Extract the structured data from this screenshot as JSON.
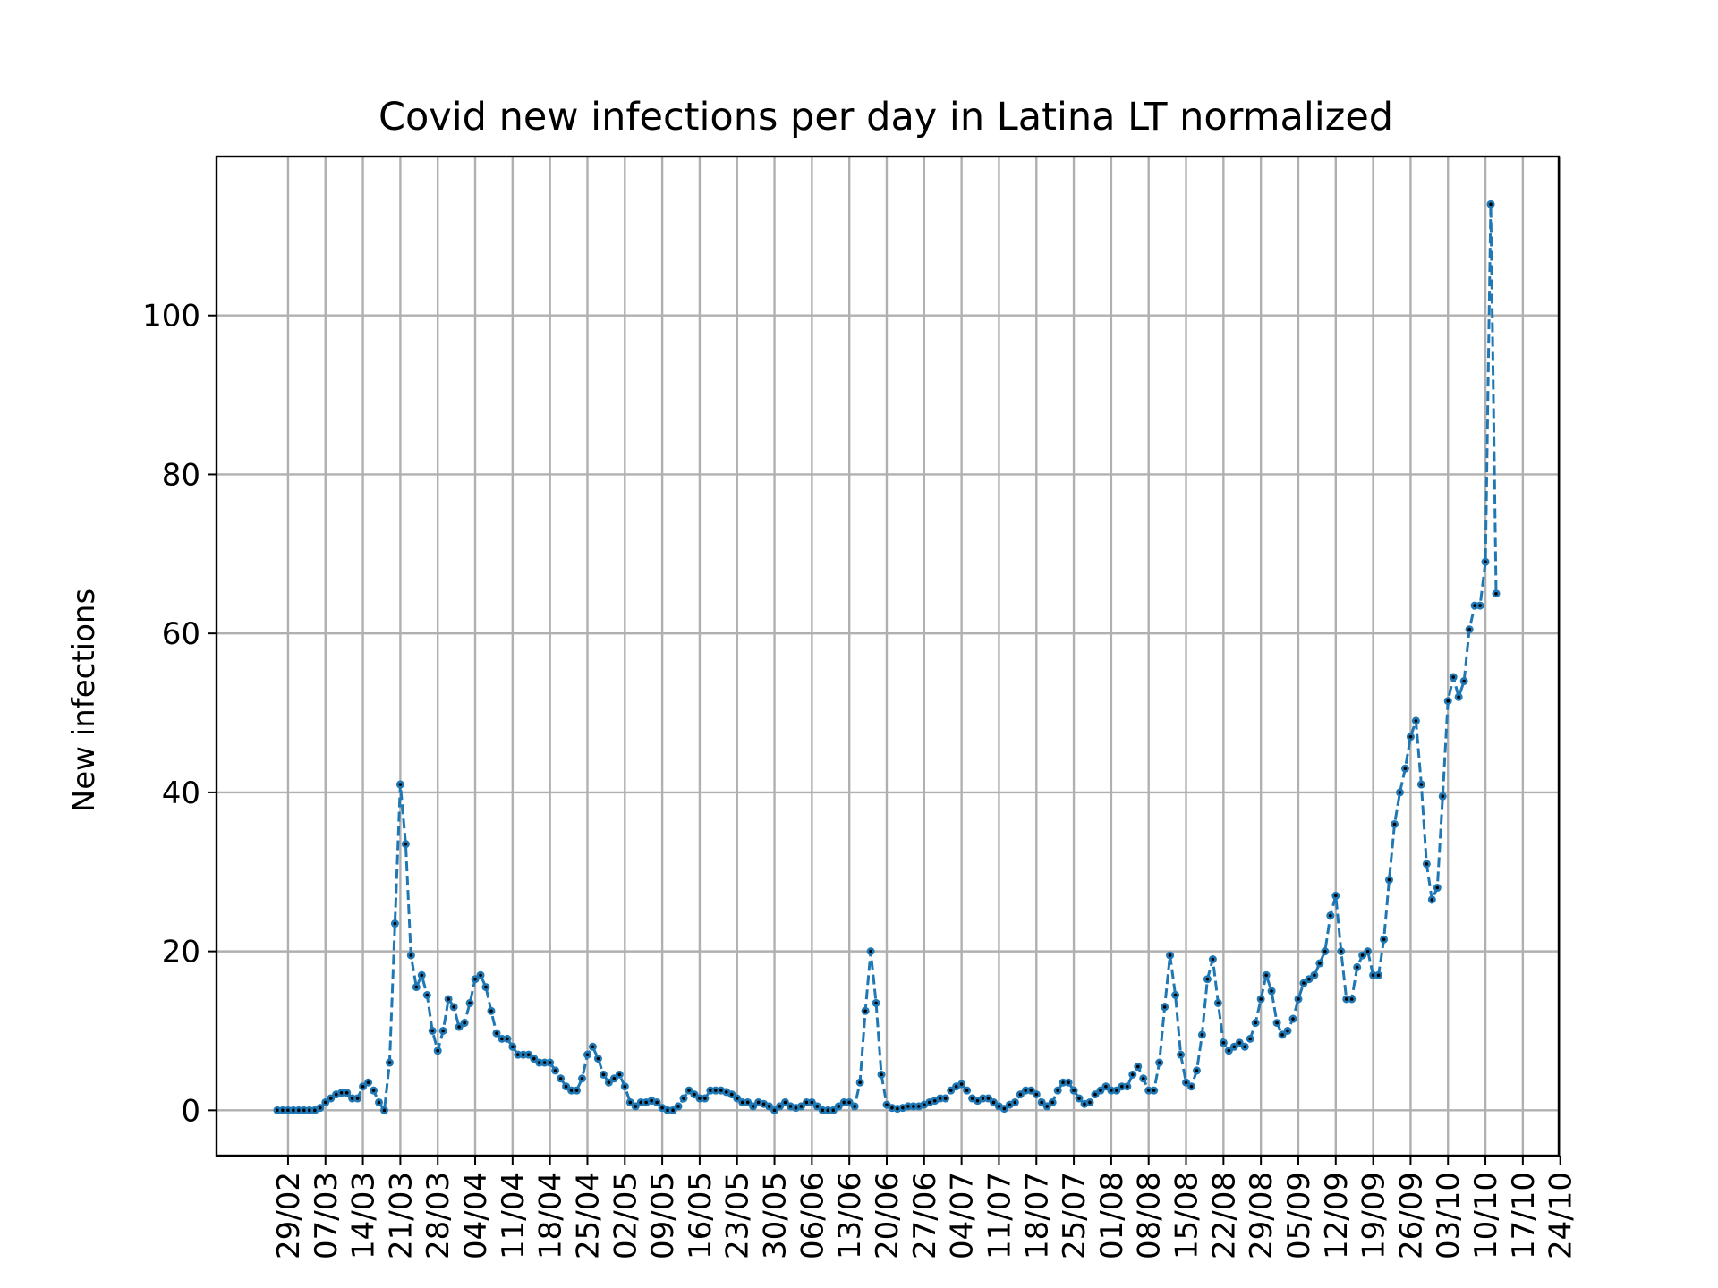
{
  "chart_data": {
    "type": "line",
    "title": "Covid new infections per day in Latina LT normalized",
    "xlabel": "",
    "ylabel": "New infections",
    "ylim": [
      -5.7,
      120
    ],
    "y_ticks": [
      0,
      20,
      40,
      60,
      80,
      100
    ],
    "x_tick_labels": [
      "29/02",
      "07/03",
      "14/03",
      "21/03",
      "28/03",
      "04/04",
      "11/04",
      "18/04",
      "25/04",
      "02/05",
      "09/05",
      "16/05",
      "23/05",
      "30/05",
      "06/06",
      "13/06",
      "20/06",
      "27/06",
      "04/07",
      "11/07",
      "18/07",
      "25/07",
      "01/08",
      "08/08",
      "15/08",
      "22/08",
      "29/08",
      "05/09",
      "12/09",
      "19/09",
      "26/09",
      "03/10",
      "10/10",
      "17/10",
      "24/10"
    ],
    "grid": true,
    "line_color": "#1f77b4",
    "line_style": "dashed",
    "marker_color": "#1f77b4",
    "marker_dot_color": "#000000",
    "series": [
      {
        "name": "",
        "start_date": "2020-02-27",
        "values": [
          0,
          0,
          0,
          0,
          0,
          0,
          0,
          0,
          0.3,
          1,
          1.5,
          2,
          2.2,
          2.2,
          1.5,
          1.5,
          3,
          3.5,
          2.5,
          1,
          0,
          6,
          23.5,
          41,
          33.5,
          19.5,
          15.5,
          17,
          14.5,
          10,
          7.5,
          10,
          14,
          13,
          10.5,
          11,
          13.5,
          16.5,
          17,
          15.5,
          12.5,
          9.7,
          9,
          9,
          8,
          7,
          7,
          7,
          6.5,
          6,
          6,
          6,
          5,
          4,
          3,
          2.5,
          2.5,
          4,
          7,
          8,
          6.5,
          4.5,
          3.5,
          4,
          4.5,
          3,
          1,
          0.5,
          1,
          1,
          1.2,
          1,
          0.3,
          0,
          0,
          0.5,
          1.5,
          2.5,
          2,
          1.5,
          1.5,
          2.5,
          2.5,
          2.5,
          2.3,
          2,
          1.5,
          1,
          1,
          0.5,
          1,
          0.8,
          0.5,
          0,
          0.5,
          1,
          0.5,
          0.3,
          0.5,
          1,
          1,
          0.5,
          0,
          0,
          0,
          0.5,
          1,
          1,
          0.5,
          3.5,
          12.5,
          20,
          13.5,
          4.5,
          0.7,
          0.3,
          0.2,
          0.3,
          0.5,
          0.5,
          0.5,
          0.7,
          1,
          1.2,
          1.5,
          1.5,
          2.5,
          3,
          3.3,
          2.5,
          1.5,
          1.2,
          1.5,
          1.5,
          1,
          0.5,
          0.2,
          0.7,
          1,
          2,
          2.5,
          2.5,
          2,
          1,
          0.5,
          1,
          2.5,
          3.5,
          3.5,
          2.5,
          1.5,
          0.8,
          1,
          2,
          2.5,
          3,
          2.5,
          2.5,
          3,
          3,
          4.5,
          5.5,
          4,
          2.5,
          2.5,
          6,
          13,
          19.5,
          14.5,
          7,
          3.5,
          3,
          5,
          9.5,
          16.5,
          19,
          13.5,
          8.5,
          7.5,
          8,
          8.5,
          8,
          9,
          11,
          14,
          17,
          15,
          11,
          9.5,
          10,
          11.5,
          14,
          16,
          16.5,
          17,
          18.5,
          20,
          24.5,
          27,
          20,
          14,
          14,
          18,
          19.5,
          20,
          17,
          17,
          21.5,
          29,
          36,
          40,
          43,
          47,
          49,
          41,
          31,
          26.5,
          28,
          39.5,
          51.5,
          54.5,
          52,
          54,
          60.5,
          63.5,
          63.5,
          69,
          114,
          65
        ]
      }
    ]
  }
}
